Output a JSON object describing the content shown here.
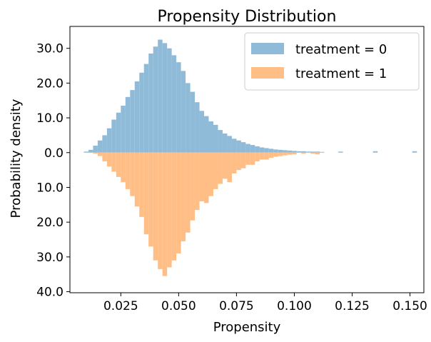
{
  "chart_data": {
    "type": "bar",
    "title": "Propensity Distribution",
    "xlabel": "Propensity",
    "ylabel": "Probability density",
    "xlim": [
      0.003,
      0.156
    ],
    "ylim": [
      -40.3,
      36.3
    ],
    "x_ticks": [
      0.025,
      0.05,
      0.075,
      0.1,
      0.125,
      0.15
    ],
    "x_tick_labels": [
      "0.025",
      "0.050",
      "0.075",
      "0.100",
      "0.125",
      "0.150"
    ],
    "y_ticks": [
      30,
      20,
      10,
      0,
      -10,
      -20,
      -30,
      -40
    ],
    "y_tick_labels": [
      "30.0",
      "20.0",
      "10.0",
      "0.0",
      "10.0",
      "20.0",
      "30.0",
      "40.0"
    ],
    "legend_position": "top-right",
    "grid": false,
    "series": [
      {
        "name": "treatment = 0",
        "color": "#8fbbd9",
        "direction": "up",
        "x": [
          0.01,
          0.012,
          0.014,
          0.016,
          0.018,
          0.02,
          0.022,
          0.024,
          0.026,
          0.028,
          0.03,
          0.032,
          0.034,
          0.036,
          0.038,
          0.04,
          0.042,
          0.044,
          0.046,
          0.048,
          0.05,
          0.052,
          0.054,
          0.056,
          0.058,
          0.06,
          0.062,
          0.064,
          0.066,
          0.068,
          0.07,
          0.072,
          0.074,
          0.076,
          0.078,
          0.08,
          0.082,
          0.084,
          0.086,
          0.088,
          0.09,
          0.092,
          0.094,
          0.096,
          0.098,
          0.1,
          0.102,
          0.104,
          0.106,
          0.108,
          0.11,
          0.112,
          0.12,
          0.135,
          0.152
        ],
        "values": [
          0.3,
          0.8,
          2.0,
          3.5,
          5.0,
          7.0,
          9.5,
          11.5,
          13.5,
          16.0,
          18.0,
          20.5,
          23.0,
          25.5,
          28.5,
          30.5,
          32.5,
          31.5,
          30.0,
          28.0,
          26.0,
          23.5,
          20.0,
          17.5,
          14.5,
          12.0,
          10.5,
          9.0,
          8.0,
          6.5,
          5.5,
          4.8,
          4.0,
          3.5,
          3.0,
          2.5,
          2.2,
          1.8,
          1.5,
          1.3,
          1.1,
          0.9,
          0.8,
          0.7,
          0.6,
          0.5,
          0.4,
          0.4,
          0.3,
          0.3,
          0.3,
          0.2,
          0.3,
          0.4,
          0.4
        ]
      },
      {
        "name": "treatment = 1",
        "color": "#ffbe86",
        "direction": "down",
        "x": [
          0.014,
          0.016,
          0.018,
          0.02,
          0.022,
          0.024,
          0.026,
          0.028,
          0.03,
          0.032,
          0.034,
          0.036,
          0.038,
          0.04,
          0.042,
          0.044,
          0.046,
          0.048,
          0.05,
          0.052,
          0.054,
          0.056,
          0.058,
          0.06,
          0.062,
          0.064,
          0.066,
          0.068,
          0.07,
          0.072,
          0.074,
          0.076,
          0.078,
          0.08,
          0.082,
          0.084,
          0.086,
          0.088,
          0.09,
          0.092,
          0.094,
          0.096,
          0.098,
          0.1,
          0.104,
          0.108,
          0.11
        ],
        "values": [
          0.3,
          1.0,
          2.5,
          4.0,
          5.5,
          7.0,
          8.5,
          10.5,
          12.5,
          15.5,
          18.5,
          23.5,
          27.0,
          31.0,
          33.5,
          35.5,
          33.0,
          31.0,
          29.0,
          25.5,
          23.0,
          19.5,
          16.5,
          14.0,
          14.5,
          12.5,
          10.5,
          9.0,
          7.5,
          8.5,
          6.0,
          5.0,
          4.5,
          3.5,
          3.5,
          2.5,
          2.0,
          2.0,
          1.5,
          1.2,
          1.0,
          0.8,
          0.6,
          0.5,
          0.3,
          0.3,
          0.5
        ]
      }
    ]
  }
}
